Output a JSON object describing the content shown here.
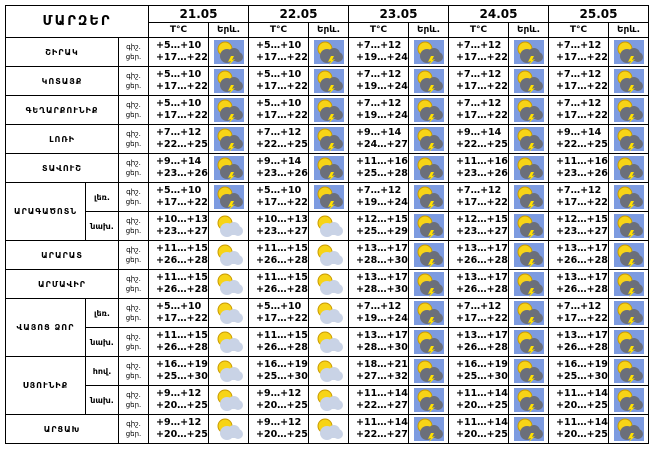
{
  "header": {
    "title": "ՄԱՐԶԵՐ",
    "dates": [
      "21.05",
      "22.05",
      "23.05",
      "24.05",
      "25.05"
    ],
    "temp_label": "T°C",
    "icon_label": "Երև."
  },
  "time_labels": [
    "գիշ.",
    "ցեր."
  ],
  "regions": [
    {
      "name": "ՇԻՐԱԿ",
      "rows": [
        {
          "days": [
            [
              "+5…+10",
              "+17…+22"
            ],
            [
              "+5…+10",
              "+17…+22"
            ],
            [
              "+7…+12",
              "+19…+24"
            ],
            [
              "+7…+12",
              "+17…+22"
            ],
            [
              "+7…+12",
              "+17…+22"
            ]
          ]
        }
      ]
    },
    {
      "name": "ԿՈՏԱՅՔ",
      "rows": [
        {
          "days": [
            [
              "+5…+10",
              "+17…+22"
            ],
            [
              "+5…+10",
              "+17…+22"
            ],
            [
              "+7…+12",
              "+19…+24"
            ],
            [
              "+7…+12",
              "+17…+22"
            ],
            [
              "+7…+12",
              "+17…+22"
            ]
          ]
        }
      ]
    },
    {
      "name": "ԳԵՂԱՐՔՈՒՆԻՔ",
      "rows": [
        {
          "days": [
            [
              "+5…+10",
              "+17…+22"
            ],
            [
              "+5…+10",
              "+17…+22"
            ],
            [
              "+7…+12",
              "+19…+24"
            ],
            [
              "+7…+12",
              "+17…+22"
            ],
            [
              "+7…+12",
              "+17…+22"
            ]
          ]
        }
      ]
    },
    {
      "name": "ԼՈՌԻ",
      "rows": [
        {
          "days": [
            [
              "+7…+12",
              "+22…+25"
            ],
            [
              "+7…+12",
              "+22…+25"
            ],
            [
              "+9…+14",
              "+24…+27"
            ],
            [
              "+9…+14",
              "+22…+25"
            ],
            [
              "+9…+14",
              "+22…+25"
            ]
          ]
        }
      ]
    },
    {
      "name": "ՏԱՎՈՒՇ",
      "rows": [
        {
          "days": [
            [
              "+9…+14",
              "+23…+26"
            ],
            [
              "+9…+14",
              "+23…+26"
            ],
            [
              "+11…+16",
              "+25…+28"
            ],
            [
              "+11…+16",
              "+23…+26"
            ],
            [
              "+11…+16",
              "+23…+26"
            ]
          ]
        }
      ]
    },
    {
      "name": "ԱՐԱԳԱԾՈՏՆ",
      "rows": [
        {
          "label": "լեռ.",
          "days": [
            [
              "+5…+10",
              "+17…+22"
            ],
            [
              "+5…+10",
              "+17…+22"
            ],
            [
              "+7…+12",
              "+19…+24"
            ],
            [
              "+7…+12",
              "+17…+22"
            ],
            [
              "+7…+12",
              "+17…+22"
            ]
          ]
        },
        {
          "label": "նախ.",
          "days": [
            [
              "+10…+13",
              "+23…+27"
            ],
            [
              "+10…+13",
              "+23…+27"
            ],
            [
              "+12…+15",
              "+25…+29"
            ],
            [
              "+12…+15",
              "+23…+27"
            ],
            [
              "+12…+15",
              "+23…+27"
            ]
          ]
        }
      ]
    },
    {
      "name": "ԱՐԱՐԱՏ",
      "rows": [
        {
          "days": [
            [
              "+11…+15",
              "+26…+28"
            ],
            [
              "+11…+15",
              "+26…+28"
            ],
            [
              "+13…+17",
              "+28…+30"
            ],
            [
              "+13…+17",
              "+26…+28"
            ],
            [
              "+13…+17",
              "+26…+28"
            ]
          ]
        }
      ]
    },
    {
      "name": "ԱՐՄԱՎԻՐ",
      "rows": [
        {
          "days": [
            [
              "+11…+15",
              "+26…+28"
            ],
            [
              "+11…+15",
              "+26…+28"
            ],
            [
              "+13…+17",
              "+28…+30"
            ],
            [
              "+13…+17",
              "+26…+28"
            ],
            [
              "+13…+17",
              "+26…+28"
            ]
          ]
        }
      ]
    },
    {
      "name": "ՎԱՅՈՑ ՁՈՐ",
      "rows": [
        {
          "label": "լեռ.",
          "days": [
            [
              "+5…+10",
              "+17…+22"
            ],
            [
              "+5…+10",
              "+17…+22"
            ],
            [
              "+7…+12",
              "+19…+24"
            ],
            [
              "+7…+12",
              "+17…+22"
            ],
            [
              "+7…+12",
              "+17…+22"
            ]
          ]
        },
        {
          "label": "նախ.",
          "days": [
            [
              "+11…+15",
              "+26…+28"
            ],
            [
              "+11…+15",
              "+26…+28"
            ],
            [
              "+13…+17",
              "+28…+30"
            ],
            [
              "+13…+17",
              "+26…+28"
            ],
            [
              "+13…+17",
              "+26…+28"
            ]
          ]
        }
      ]
    },
    {
      "name": "ՍՅՈՒՆԻՔ",
      "rows": [
        {
          "label": "հով.",
          "days": [
            [
              "+16…+19",
              "+25…+30"
            ],
            [
              "+16…+19",
              "+25…+30"
            ],
            [
              "+18…+21",
              "+27…+32"
            ],
            [
              "+16…+19",
              "+25…+30"
            ],
            [
              "+16…+19",
              "+25…+30"
            ]
          ]
        },
        {
          "label": "նախ.",
          "days": [
            [
              "+9…+12",
              "+20…+25"
            ],
            [
              "+9…+12",
              "+20…+25"
            ],
            [
              "+11…+14",
              "+22…+27"
            ],
            [
              "+11…+14",
              "+20…+25"
            ],
            [
              "+11…+14",
              "+20…+25"
            ]
          ]
        }
      ]
    },
    {
      "name": "ԱՐՑԱԽ",
      "rows": [
        {
          "days": [
            [
              "+9…+12",
              "+20…+25"
            ],
            [
              "+9…+12",
              "+20…+25"
            ],
            [
              "+11…+14",
              "+22…+27"
            ],
            [
              "+11…+14",
              "+20…+25"
            ],
            [
              "+11…+14",
              "+20…+25"
            ]
          ]
        }
      ]
    }
  ]
}
